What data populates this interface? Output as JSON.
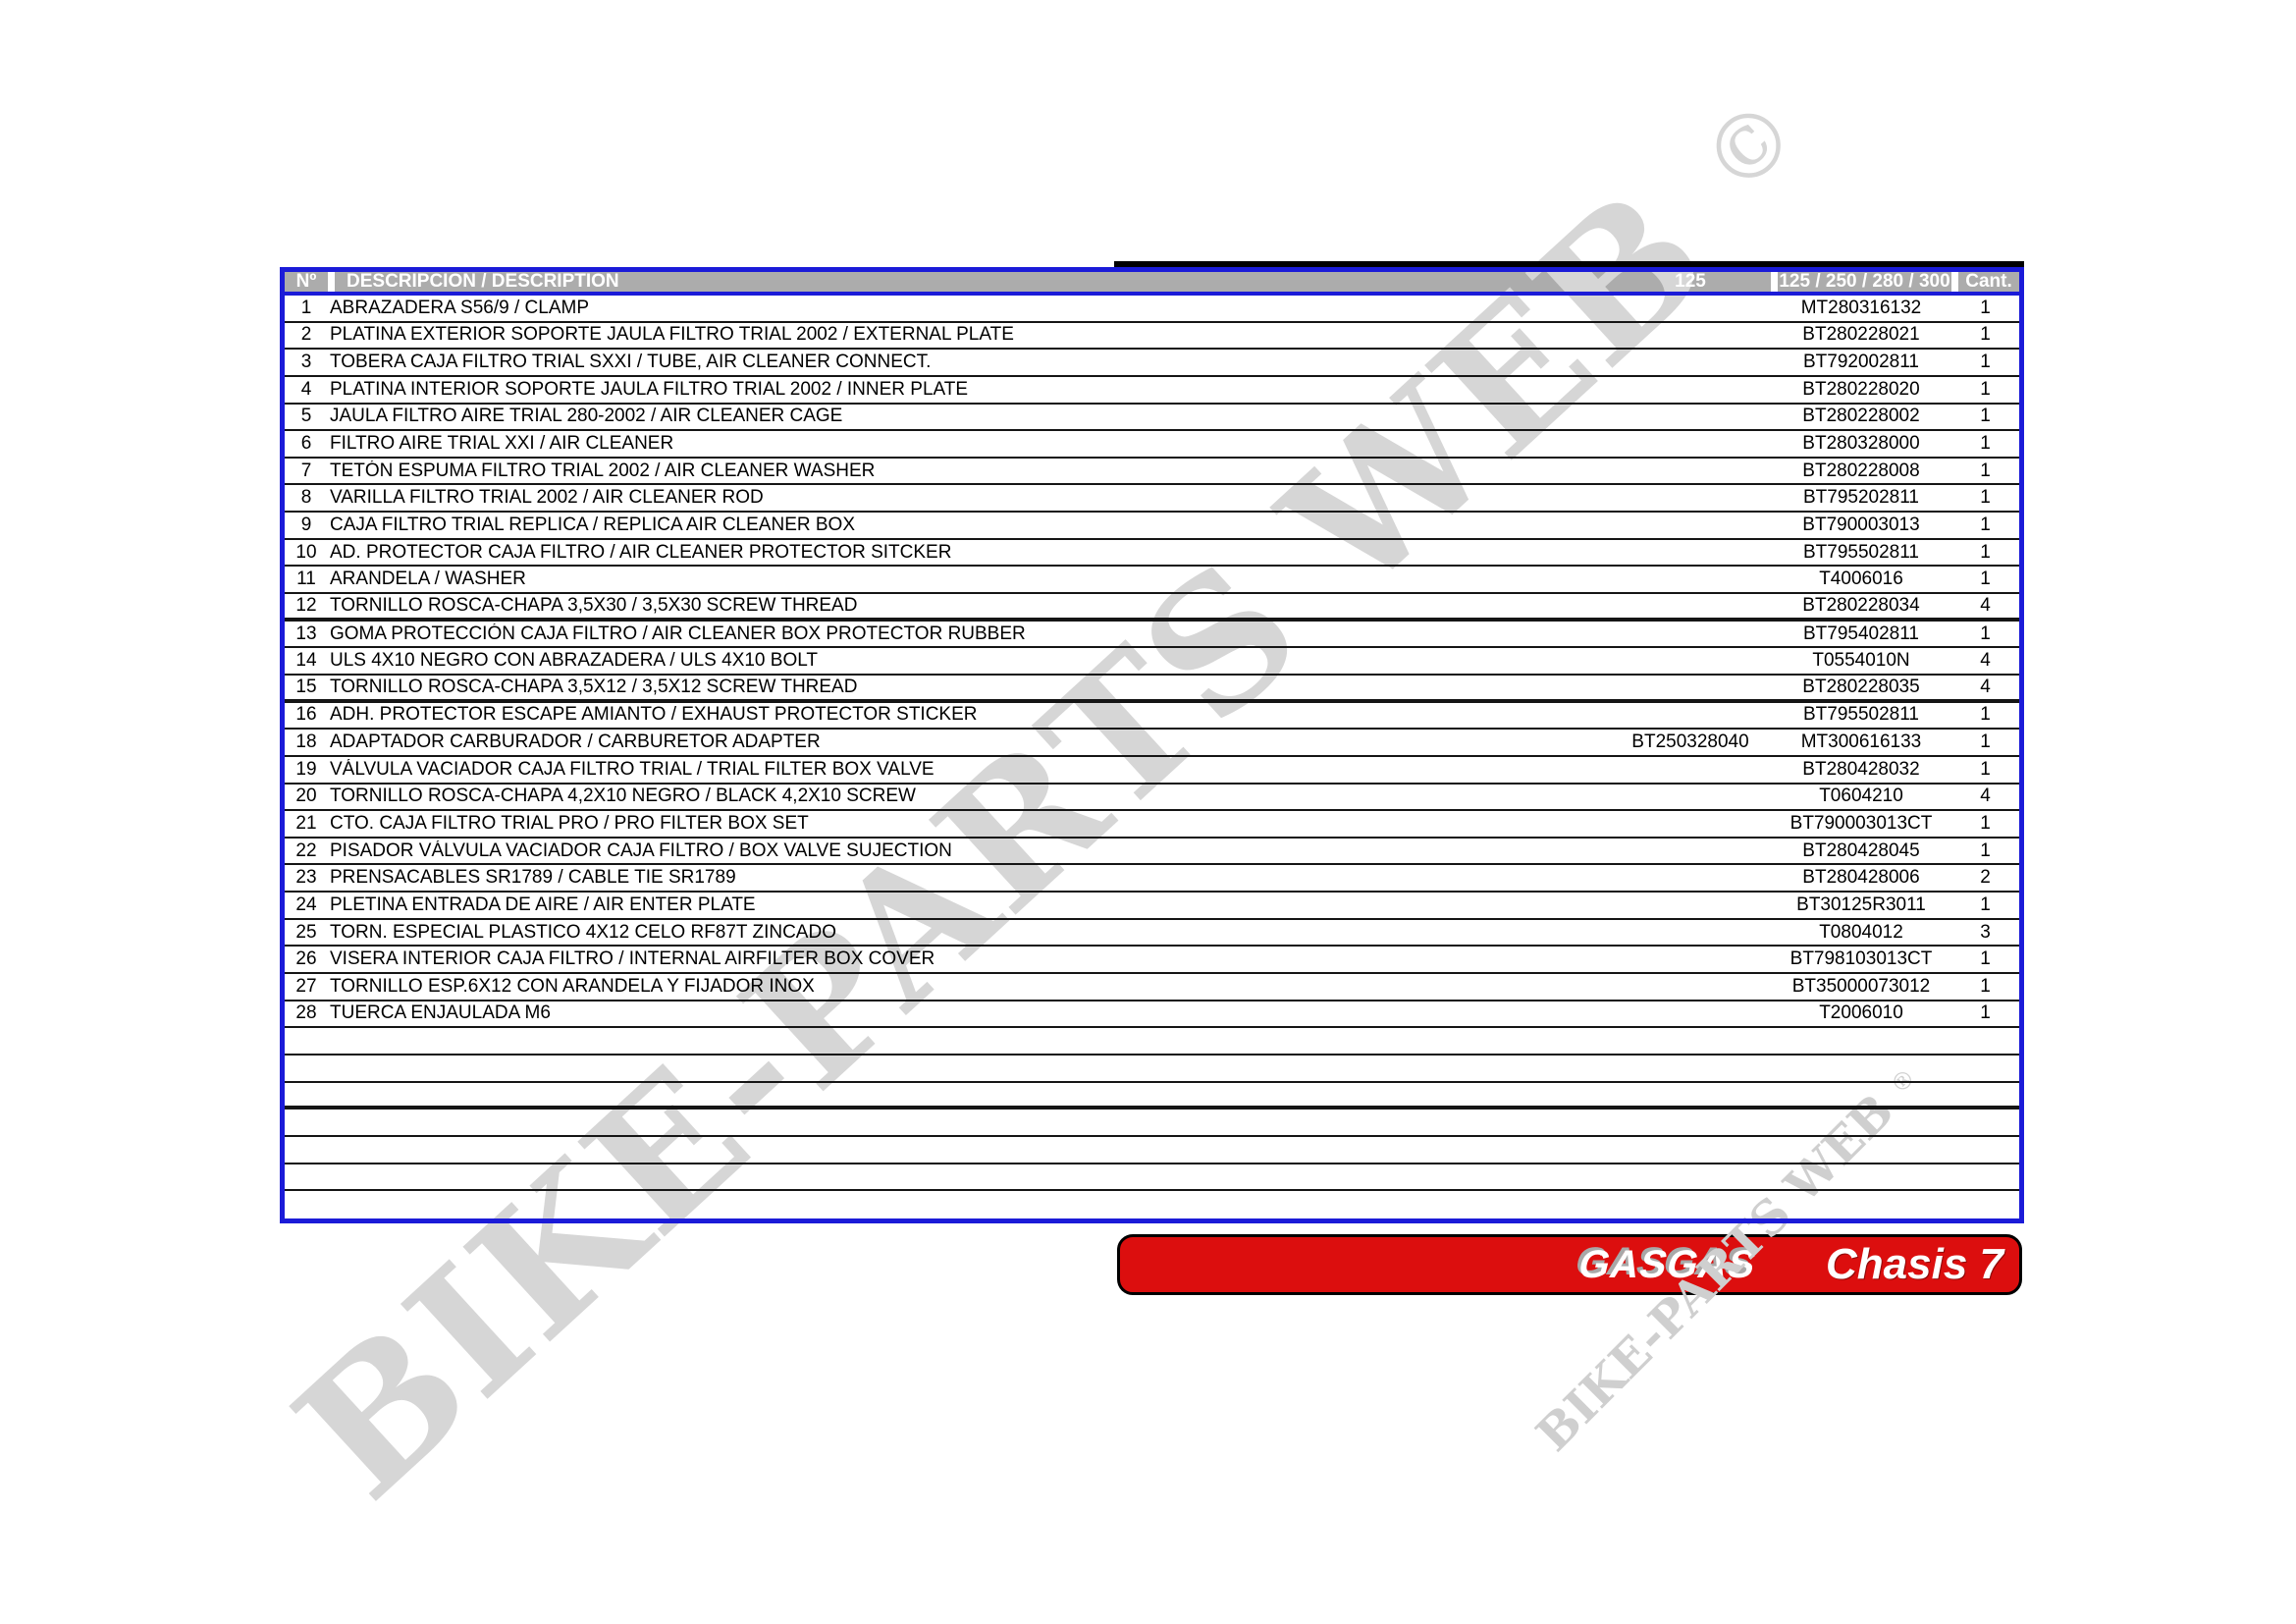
{
  "table": {
    "headers": {
      "num": "Nº",
      "description": "DESCRIPCION / DESCRIPTION",
      "col_125": "125",
      "col_all": "125 / 250 / 280 / 300",
      "qty": "Cant."
    },
    "rows": [
      {
        "num": "1",
        "description": "ABRAZADERA S56/9 / CLAMP",
        "p125": "",
        "part": "MT280316132",
        "qty": "1"
      },
      {
        "num": "2",
        "description": "PLATINA EXTERIOR SOPORTE JAULA FILTRO TRIAL 2002 / EXTERNAL PLATE",
        "p125": "",
        "part": "BT280228021",
        "qty": "1"
      },
      {
        "num": "3",
        "description": "TOBERA CAJA FILTRO TRIAL SXXI / TUBE, AIR CLEANER CONNECT.",
        "p125": "",
        "part": "BT792002811",
        "qty": "1"
      },
      {
        "num": "4",
        "description": "PLATINA INTERIOR SOPORTE JAULA FILTRO TRIAL 2002 / INNER PLATE",
        "p125": "",
        "part": "BT280228020",
        "qty": "1"
      },
      {
        "num": "5",
        "description": "JAULA FILTRO AIRE TRIAL 280-2002 / AIR CLEANER CAGE",
        "p125": "",
        "part": "BT280228002",
        "qty": "1"
      },
      {
        "num": "6",
        "description": "FILTRO AIRE TRIAL XXI / AIR CLEANER",
        "p125": "",
        "part": "BT280328000",
        "qty": "1"
      },
      {
        "num": "7",
        "description": "TETÓN ESPUMA FILTRO TRIAL 2002 / AIR CLEANER WASHER",
        "p125": "",
        "part": "BT280228008",
        "qty": "1"
      },
      {
        "num": "8",
        "description": "VARILLA FILTRO TRIAL 2002 / AIR CLEANER ROD",
        "p125": "",
        "part": "BT795202811",
        "qty": "1"
      },
      {
        "num": "9",
        "description": "CAJA FILTRO TRIAL REPLICA / REPLICA AIR CLEANER BOX",
        "p125": "",
        "part": "BT790003013",
        "qty": "1"
      },
      {
        "num": "10",
        "description": "AD. PROTECTOR CAJA FILTRO / AIR CLEANER PROTECTOR SITCKER",
        "p125": "",
        "part": "BT795502811",
        "qty": "1"
      },
      {
        "num": "11",
        "description": "ARANDELA / WASHER",
        "p125": "",
        "part": "T4006016",
        "qty": "1"
      },
      {
        "num": "12",
        "description": "TORNILLO ROSCA-CHAPA 3,5X30 / 3,5X30 SCREW THREAD",
        "p125": "",
        "part": "BT280228034",
        "qty": "4",
        "thick": true
      },
      {
        "num": "13",
        "description": "GOMA PROTECCIÓN CAJA FILTRO / AIR CLEANER BOX PROTECTOR RUBBER",
        "p125": "",
        "part": "BT795402811",
        "qty": "1"
      },
      {
        "num": "14",
        "description": "ULS 4X10 NEGRO CON ABRAZADERA / ULS 4X10 BOLT",
        "p125": "",
        "part": "T0554010N",
        "qty": "4"
      },
      {
        "num": "15",
        "description": "TORNILLO ROSCA-CHAPA 3,5X12 / 3,5X12 SCREW THREAD",
        "p125": "",
        "part": "BT280228035",
        "qty": "4",
        "thick": true
      },
      {
        "num": "16",
        "description": "ADH. PROTECTOR ESCAPE AMIANTO / EXHAUST PROTECTOR STICKER",
        "p125": "",
        "part": "BT795502811",
        "qty": "1"
      },
      {
        "num": "18",
        "description": "ADAPTADOR CARBURADOR / CARBURETOR ADAPTER",
        "p125": "BT250328040",
        "part": "MT300616133",
        "qty": "1"
      },
      {
        "num": "19",
        "description": "VÁLVULA VACIADOR CAJA FILTRO TRIAL / TRIAL FILTER BOX VALVE",
        "p125": "",
        "part": "BT280428032",
        "qty": "1"
      },
      {
        "num": "20",
        "description": "TORNILLO ROSCA-CHAPA 4,2X10 NEGRO / BLACK 4,2X10 SCREW",
        "p125": "",
        "part": "T0604210",
        "qty": "4"
      },
      {
        "num": "21",
        "description": "CTO. CAJA FILTRO TRIAL PRO / PRO FILTER BOX SET",
        "p125": "",
        "part": "BT790003013CT",
        "qty": "1"
      },
      {
        "num": "22",
        "description": "PISADOR VÁLVULA VACIADOR CAJA FILTRO / BOX VALVE SUJECTION",
        "p125": "",
        "part": "BT280428045",
        "qty": "1"
      },
      {
        "num": "23",
        "description": "PRENSACABLES SR1789 / CABLE TIE SR1789",
        "p125": "",
        "part": "BT280428006",
        "qty": "2"
      },
      {
        "num": "24",
        "description": "PLETINA ENTRADA DE AIRE / AIR ENTER PLATE",
        "p125": "",
        "part": "BT30125R3011",
        "qty": "1"
      },
      {
        "num": "25",
        "description": "TORN. ESPECIAL PLASTICO 4X12 CELO RF87T ZINCADO",
        "p125": "",
        "part": "T0804012",
        "qty": "3"
      },
      {
        "num": "26",
        "description": "VISERA INTERIOR CAJA FILTRO / INTERNAL AIRFILTER BOX COVER",
        "p125": "",
        "part": "BT798103013CT",
        "qty": "1"
      },
      {
        "num": "27",
        "description": "TORNILLO ESP.6X12 CON ARANDELA Y FIJADOR INOX",
        "p125": "",
        "part": "BT35000073012",
        "qty": "1"
      },
      {
        "num": "28",
        "description": "TUERCA ENJAULADA M6",
        "p125": "",
        "part": "T2006010",
        "qty": "1"
      }
    ],
    "empty_rows": [
      {
        "thick": false
      },
      {
        "thick": false
      },
      {
        "thick": true
      },
      {
        "thick": false
      },
      {
        "thick": false
      },
      {
        "thick": false
      },
      {
        "thick": false
      }
    ]
  },
  "banner": {
    "brand": "GASGAS",
    "title": "Chasis 7"
  },
  "watermarks": {
    "large_text": "BIKE-PARTS WEB",
    "large_symbol": "©",
    "small_text": "BIKE-PARTS WEB",
    "small_symbol": "®"
  },
  "colors": {
    "table_border_blue": "#1b1bd8",
    "header_gray": "#acacac",
    "banner_red": "#dc0e0e",
    "watermark_gray": "#d6d6d6",
    "row_line_black": "#151515"
  }
}
